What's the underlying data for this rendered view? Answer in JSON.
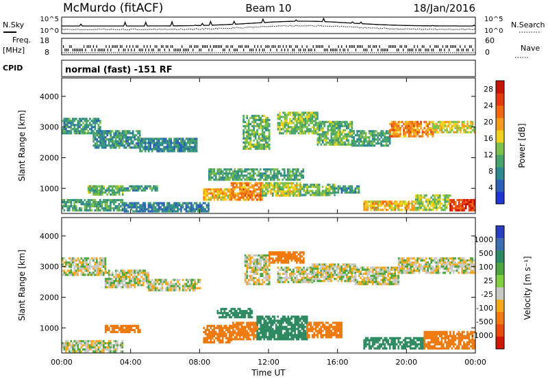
{
  "header": {
    "station": "McMurdo (fitACF)",
    "beam": "Beam 10",
    "date": "18/Jan/2016"
  },
  "summary_panels": {
    "nsky_label": "N.Sky",
    "nsky_ticks": [
      "10^5",
      "10^0"
    ],
    "nsearch_label": "N.Search",
    "nsearch_ticks": [
      "10^5",
      "10^0"
    ],
    "freq_label": "Freq.",
    "freq_unit": "[MHz]",
    "freq_ticks": [
      "18",
      "8"
    ],
    "nave_label": "Nave",
    "nave_ticks": [
      "60",
      "0"
    ],
    "cpid_label": "CPID",
    "cpid_text": "normal (fast) -151 RF"
  },
  "colors": {
    "power_scale": [
      "#1f36d0",
      "#2b62b6",
      "#2e8a90",
      "#47a36a",
      "#7cbf4a",
      "#f0d11a",
      "#f59a1a",
      "#ef6a10",
      "#e23a0a",
      "#cc1100"
    ],
    "velocity_scale": [
      "#2a3fbf",
      "#3d6fb0",
      "#2e8a60",
      "#4da640",
      "#7fd040",
      "#c8c8c4",
      "#f5a81a",
      "#ef7a10",
      "#e84b0a",
      "#d01800"
    ]
  },
  "chart_data": [
    {
      "type": "heatmap",
      "name": "power",
      "xlabel": "Time UT",
      "ylabel": "Slant Range [km]",
      "x_range_hours": [
        0,
        24
      ],
      "ylim": [
        180,
        4600
      ],
      "x_ticks": [
        "00:00",
        "04:00",
        "08:00",
        "12:00",
        "16:00",
        "20:00",
        "00:00"
      ],
      "y_ticks": [
        1000,
        2000,
        3000,
        4000
      ],
      "colorbar_label": "Power [dB]",
      "colorbar_ticks": [
        4,
        8,
        12,
        16,
        20,
        24,
        28
      ],
      "colorbar_range": [
        0,
        30
      ],
      "regions": [
        {
          "t": [
            0.0,
            2.2
          ],
          "r": [
            2800,
            3300
          ],
          "v": 9
        },
        {
          "t": [
            1.8,
            4.5
          ],
          "r": [
            2300,
            2900
          ],
          "v": 9
        },
        {
          "t": [
            4.5,
            7.8
          ],
          "r": [
            2200,
            2650
          ],
          "v": 8
        },
        {
          "t": [
            1.5,
            3.5
          ],
          "r": [
            820,
            1100
          ],
          "v": 12
        },
        {
          "t": [
            3.5,
            5.5
          ],
          "r": [
            900,
            1100
          ],
          "v": 9
        },
        {
          "t": [
            0.0,
            3.5
          ],
          "r": [
            300,
            650
          ],
          "v": 10
        },
        {
          "t": [
            3.5,
            8.5
          ],
          "r": [
            250,
            550
          ],
          "v": 7
        },
        {
          "t": [
            8.2,
            9.8
          ],
          "r": [
            600,
            1000
          ],
          "v": 18
        },
        {
          "t": [
            9.8,
            11.6
          ],
          "r": [
            650,
            1200
          ],
          "v": 21
        },
        {
          "t": [
            11.6,
            13.8
          ],
          "r": [
            750,
            1200
          ],
          "v": 15
        },
        {
          "t": [
            13.8,
            15.8
          ],
          "r": [
            750,
            1150
          ],
          "v": 12
        },
        {
          "t": [
            15.8,
            17.2
          ],
          "r": [
            850,
            1100
          ],
          "v": 9
        },
        {
          "t": [
            8.5,
            14.0
          ],
          "r": [
            1300,
            1650
          ],
          "v": 10
        },
        {
          "t": [
            10.5,
            12.0
          ],
          "r": [
            2300,
            3400
          ],
          "v": 12
        },
        {
          "t": [
            12.5,
            14.8
          ],
          "r": [
            2800,
            3500
          ],
          "v": 13
        },
        {
          "t": [
            14.8,
            16.8
          ],
          "r": [
            2400,
            3200
          ],
          "v": 12
        },
        {
          "t": [
            16.8,
            19.0
          ],
          "r": [
            2400,
            2900
          ],
          "v": 10
        },
        {
          "t": [
            19.0,
            21.5
          ],
          "r": [
            2700,
            3200
          ],
          "v": 21
        },
        {
          "t": [
            21.5,
            24.0
          ],
          "r": [
            2800,
            3200
          ],
          "v": 16
        },
        {
          "t": [
            17.5,
            20.5
          ],
          "r": [
            300,
            600
          ],
          "v": 18
        },
        {
          "t": [
            20.5,
            22.5
          ],
          "r": [
            300,
            800
          ],
          "v": 14
        },
        {
          "t": [
            22.5,
            24.0
          ],
          "r": [
            300,
            650
          ],
          "v": 26
        }
      ]
    },
    {
      "type": "heatmap",
      "name": "velocity",
      "xlabel": "Time UT",
      "ylabel": "Slant Range [km]",
      "x_range_hours": [
        0,
        24
      ],
      "ylim": [
        180,
        4600
      ],
      "x_ticks": [
        "00:00",
        "04:00",
        "08:00",
        "12:00",
        "16:00",
        "20:00",
        "00:00"
      ],
      "y_ticks": [
        1000,
        2000,
        3000,
        4000
      ],
      "colorbar_label": "Velocity [m s⁻¹]",
      "colorbar_ticks": [
        "1000",
        "500",
        "100",
        "25",
        "-25",
        "-100",
        "-500",
        "-1000"
      ],
      "colorbar_range": [
        -1000,
        1000
      ],
      "regions": [
        {
          "t": [
            0.0,
            2.5
          ],
          "r": [
            2700,
            3300
          ],
          "v": 0
        },
        {
          "t": [
            2.5,
            5.0
          ],
          "r": [
            2300,
            2900
          ],
          "v": 0
        },
        {
          "t": [
            5.0,
            8.0
          ],
          "r": [
            2200,
            2600
          ],
          "v": 0
        },
        {
          "t": [
            2.5,
            4.5
          ],
          "r": [
            850,
            1100
          ],
          "v": -300
        },
        {
          "t": [
            0.0,
            3.5
          ],
          "r": [
            250,
            600
          ],
          "v": 0
        },
        {
          "t": [
            8.2,
            9.8
          ],
          "r": [
            550,
            1100
          ],
          "v": -350
        },
        {
          "t": [
            9.8,
            11.3
          ],
          "r": [
            650,
            1200
          ],
          "v": -250
        },
        {
          "t": [
            11.3,
            14.2
          ],
          "r": [
            600,
            1400
          ],
          "v": 300
        },
        {
          "t": [
            14.2,
            16.2
          ],
          "r": [
            700,
            1200
          ],
          "v": -300
        },
        {
          "t": [
            9.0,
            11.0
          ],
          "r": [
            1350,
            1650
          ],
          "v": 250
        },
        {
          "t": [
            10.6,
            12.0
          ],
          "r": [
            2400,
            3400
          ],
          "v": 0
        },
        {
          "t": [
            12.0,
            14.0
          ],
          "r": [
            3100,
            3500
          ],
          "v": -200
        },
        {
          "t": [
            12.5,
            14.5
          ],
          "r": [
            2500,
            3000
          ],
          "v": 0
        },
        {
          "t": [
            14.5,
            17.0
          ],
          "r": [
            2500,
            3100
          ],
          "v": 0
        },
        {
          "t": [
            17.0,
            19.5
          ],
          "r": [
            2400,
            3000
          ],
          "v": 0
        },
        {
          "t": [
            19.5,
            24.0
          ],
          "r": [
            2800,
            3300
          ],
          "v": 0
        },
        {
          "t": [
            17.5,
            21.0
          ],
          "r": [
            300,
            700
          ],
          "v": 250
        },
        {
          "t": [
            21.0,
            24.0
          ],
          "r": [
            300,
            900
          ],
          "v": -200
        }
      ]
    }
  ]
}
